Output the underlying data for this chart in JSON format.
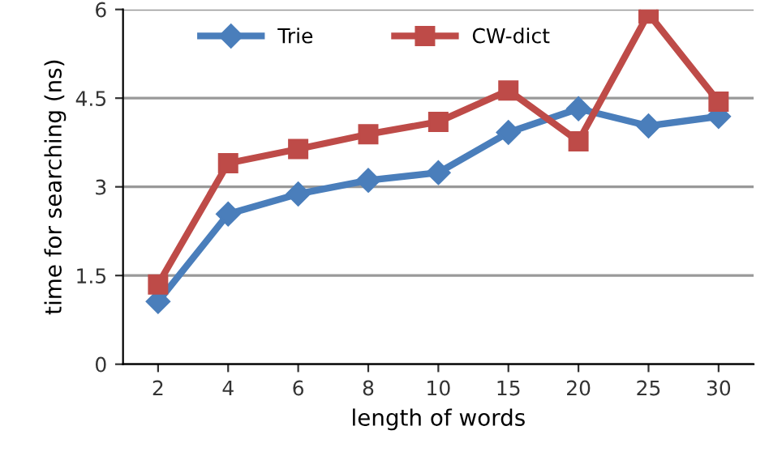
{
  "chart_data": {
    "type": "line",
    "xlabel": "length of words",
    "ylabel": "time for searching (ns)",
    "categories": [
      "2",
      "4",
      "6",
      "8",
      "10",
      "15",
      "20",
      "25",
      "30"
    ],
    "series": [
      {
        "name": "Trie",
        "color": "#4a7ebb",
        "marker": "diamond",
        "values": [
          1.06,
          2.54,
          2.88,
          3.11,
          3.24,
          3.92,
          4.32,
          4.03,
          4.19
        ]
      },
      {
        "name": "CW-dict",
        "color": "#be4b48",
        "marker": "square",
        "values": [
          1.35,
          3.4,
          3.64,
          3.89,
          4.1,
          4.63,
          3.77,
          5.93,
          4.44
        ]
      }
    ],
    "ylim": [
      0,
      6
    ],
    "yticks": [
      0,
      1.5,
      3,
      4.5,
      6
    ],
    "grid": "y",
    "legend": "top",
    "line_style": "solid"
  }
}
